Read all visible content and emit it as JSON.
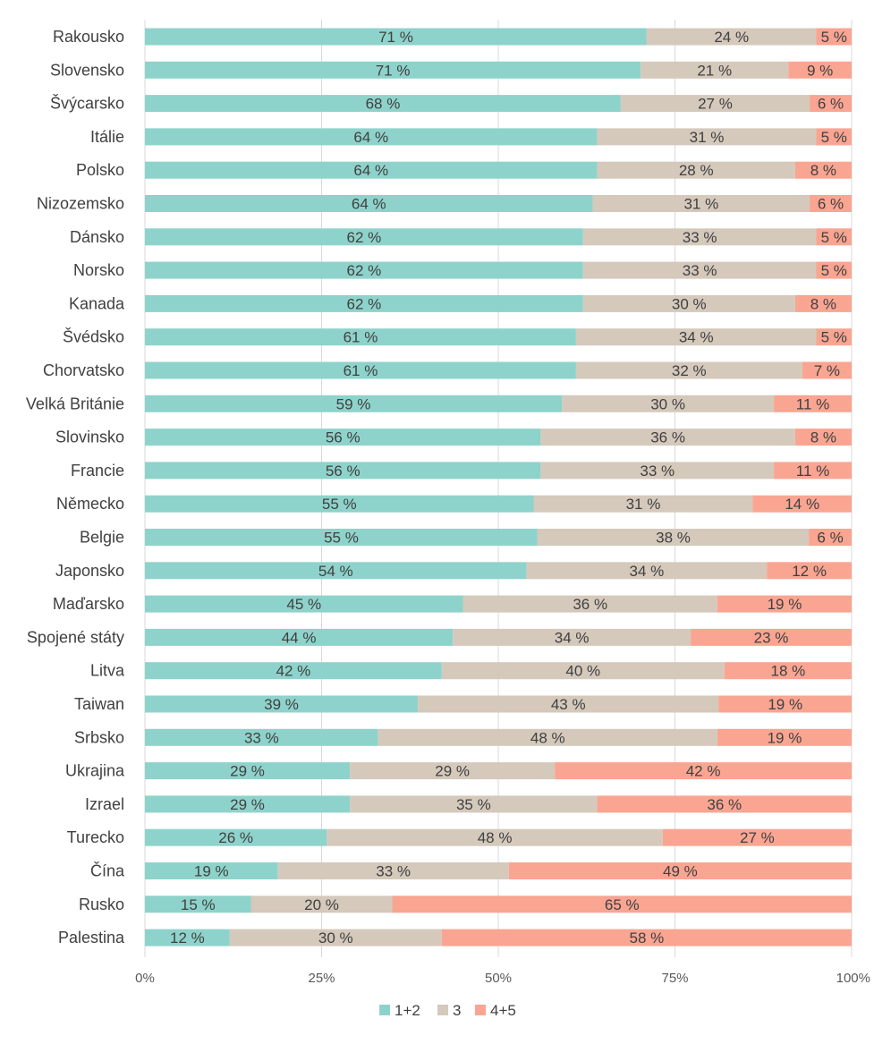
{
  "chart_data": {
    "type": "bar",
    "orientation": "horizontal",
    "stacked": true,
    "percent_stacked": true,
    "title": "",
    "xlabel": "",
    "ylabel": "",
    "xlim": [
      0,
      100
    ],
    "x_ticks": [
      0,
      25,
      50,
      75,
      100
    ],
    "x_tick_labels": [
      "0%",
      "25%",
      "50%",
      "75%",
      "100%"
    ],
    "grid": "vertical",
    "legend_position": "bottom",
    "categories": [
      "Rakousko",
      "Slovensko",
      "Švýcarsko",
      "Itálie",
      "Polsko",
      "Nizozemsko",
      "Dánsko",
      "Norsko",
      "Kanada",
      "Švédsko",
      "Chorvatsko",
      "Velká Británie",
      "Slovinsko",
      "Francie",
      "Německo",
      "Belgie",
      "Japonsko",
      "Maďarsko",
      "Spojené státy",
      "Litva",
      "Taiwan",
      "Srbsko",
      "Ukrajina",
      "Izrael",
      "Turecko",
      "Čína",
      "Rusko",
      "Palestina"
    ],
    "series": [
      {
        "name": "1+2",
        "color": "#8ed3cb",
        "values": [
          71,
          70.5,
          68,
          64,
          64,
          64,
          62,
          62,
          62,
          61,
          61,
          59,
          56,
          56,
          55,
          55,
          54,
          45,
          44,
          42,
          39,
          33,
          29,
          29,
          26,
          19,
          15,
          12
        ],
        "labels": [
          "71 %",
          "71 %",
          "68 %",
          "64 %",
          "64 %",
          "64 %",
          "62 %",
          "62 %",
          "62 %",
          "61 %",
          "61 %",
          "59 %",
          "56 %",
          "56 %",
          "55 %",
          "55 %",
          "54 %",
          "45 %",
          "44 %",
          "42 %",
          "39 %",
          "33 %",
          "29 %",
          "29 %",
          "26 %",
          "19 %",
          "15 %",
          "12 %"
        ]
      },
      {
        "name": "3",
        "color": "#d5c9bc",
        "values": [
          24,
          21,
          27,
          31,
          28,
          31,
          33,
          33,
          30,
          34,
          32,
          30,
          36,
          33,
          31,
          38,
          34,
          36,
          34,
          40,
          43,
          48,
          29,
          35,
          48,
          33,
          20,
          30
        ],
        "labels": [
          "24 %",
          "21 %",
          "27 %",
          "31 %",
          "28 %",
          "31 %",
          "33 %",
          "33 %",
          "30 %",
          "34 %",
          "32 %",
          "30 %",
          "36 %",
          "33 %",
          "31 %",
          "38 %",
          "34 %",
          "36 %",
          "34 %",
          "40 %",
          "43 %",
          "48 %",
          "29 %",
          "35 %",
          "48 %",
          "33 %",
          "20 %",
          "30 %"
        ]
      },
      {
        "name": "4+5",
        "color": "#f9a592",
        "values": [
          5,
          9,
          6,
          5,
          8,
          6,
          5,
          5,
          8,
          5,
          7,
          11,
          8,
          11,
          14,
          6,
          12,
          19,
          23,
          18,
          19,
          19,
          42,
          36,
          27,
          49,
          65,
          58
        ],
        "labels": [
          "5 %",
          "9 %",
          "6 %",
          "5 %",
          "8 %",
          "6 %",
          "5 %",
          "5 %",
          "8 %",
          "5 %",
          "7 %",
          "11 %",
          "8 %",
          "11 %",
          "14 %",
          "6 %",
          "12 %",
          "19 %",
          "23 %",
          "18 %",
          "19 %",
          "19 %",
          "42 %",
          "36 %",
          "27 %",
          "49 %",
          "65 %",
          "58 %"
        ]
      }
    ],
    "colors": {
      "gridline": "#d9d9d9",
      "category_text": "#404040",
      "value_text": "#404040",
      "tick_text": "#595959"
    }
  }
}
